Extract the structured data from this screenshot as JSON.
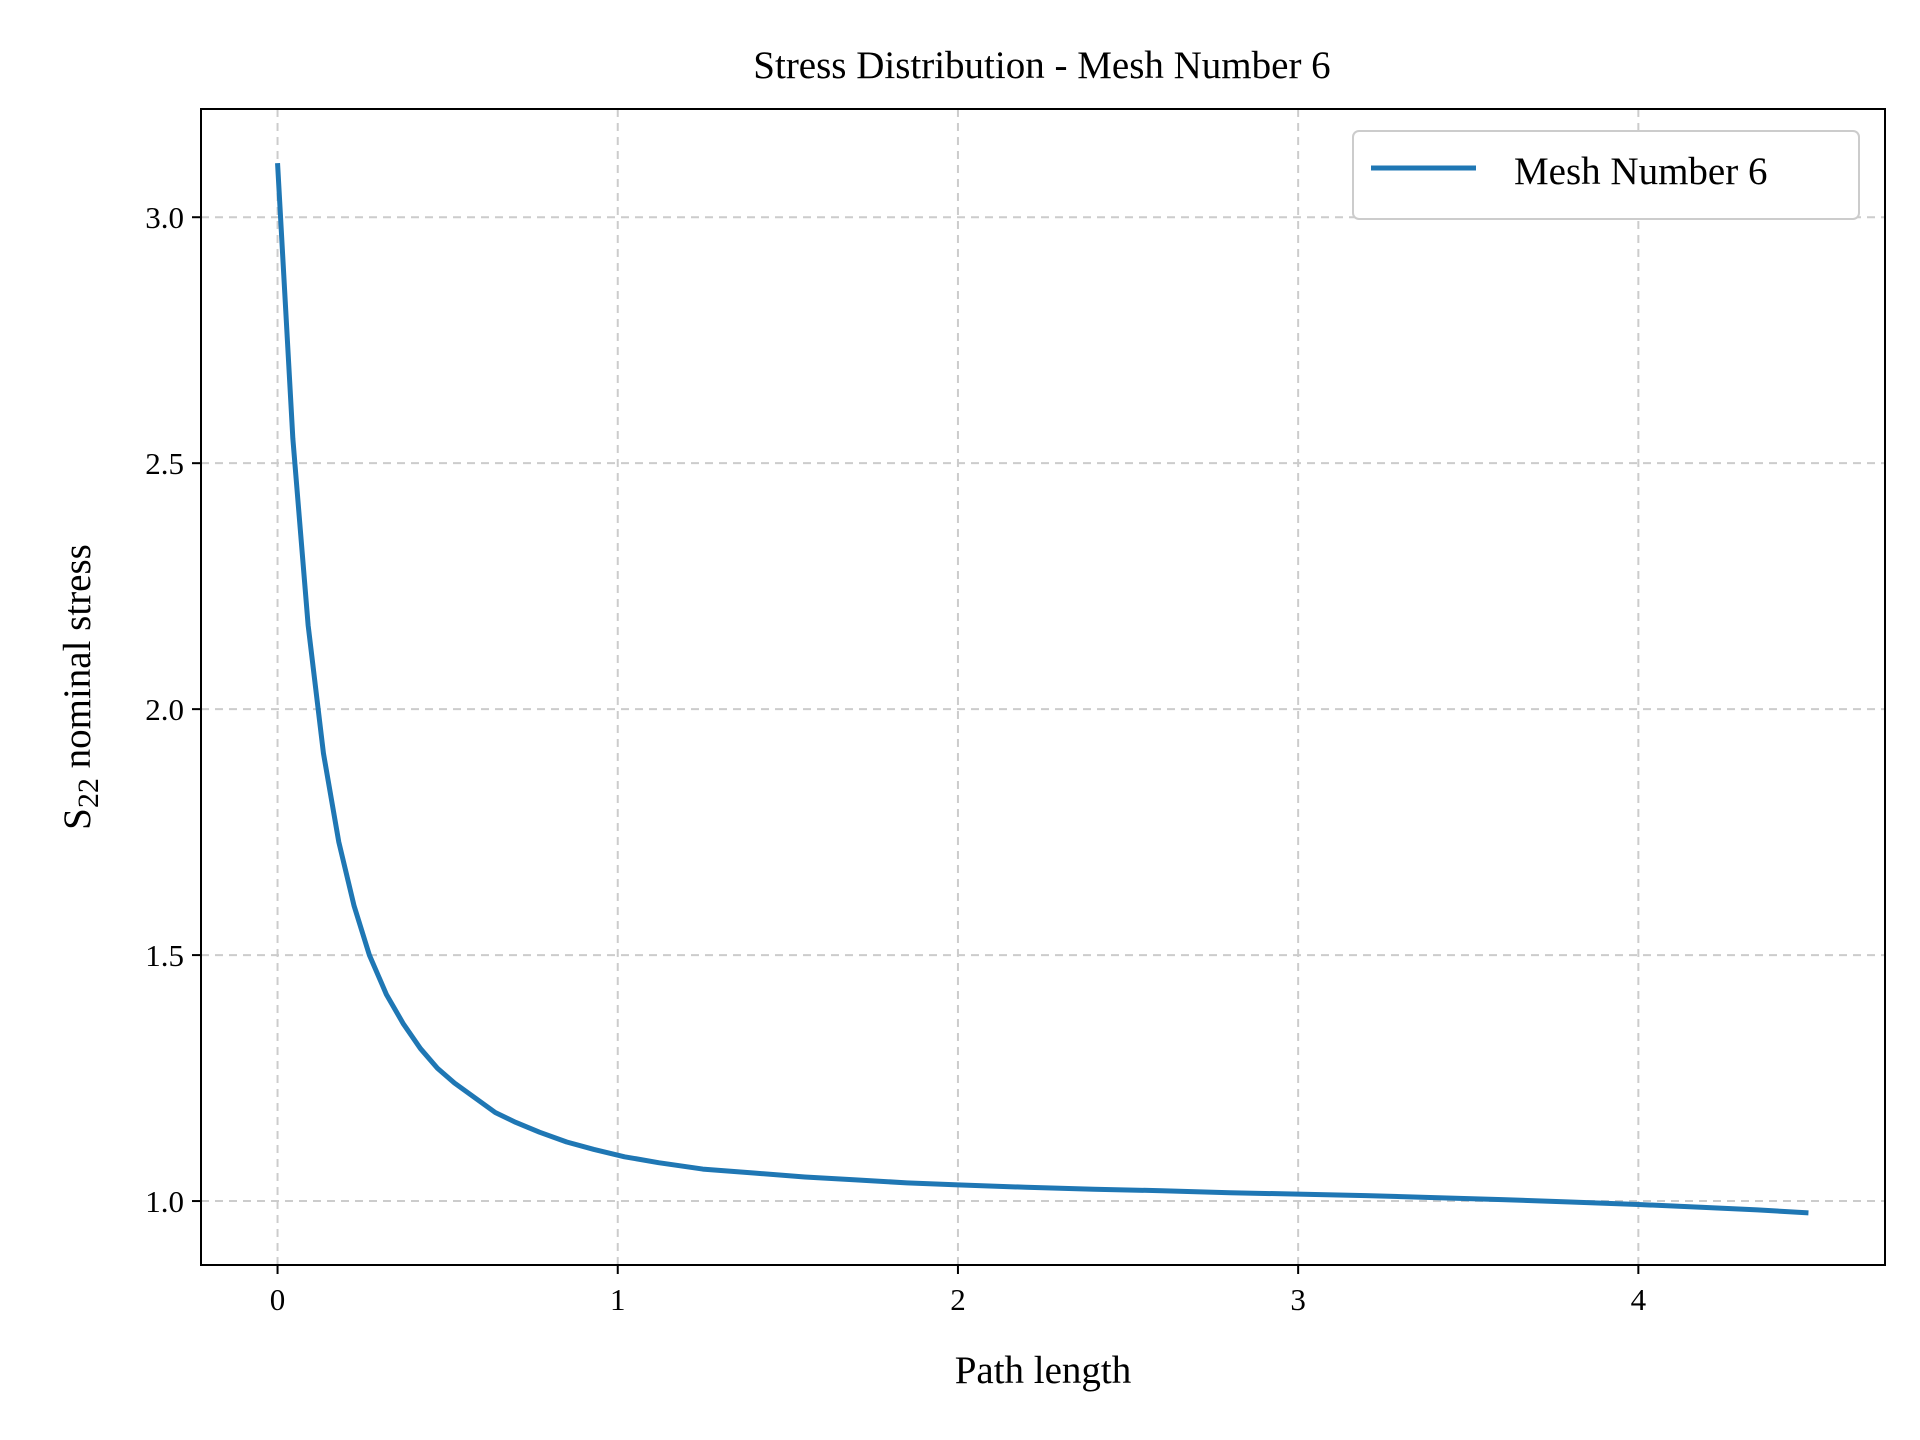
{
  "chart_data": {
    "type": "line",
    "title": "Stress Distribution - Mesh Number 6",
    "xlabel": "Path length",
    "ylabel": "nominal stress",
    "ylabel_symbol": "S",
    "ylabel_subscript": "22",
    "xlim": [
      -0.225,
      4.725
    ],
    "ylim": [
      0.87,
      3.22
    ],
    "xticks": [
      0,
      1,
      2,
      3,
      4
    ],
    "xtick_labels": [
      "0",
      "1",
      "2",
      "3",
      "4"
    ],
    "yticks": [
      1.0,
      1.5,
      2.0,
      2.5,
      3.0
    ],
    "ytick_labels": [
      "1.0",
      "1.5",
      "2.0",
      "2.5",
      "3.0"
    ],
    "grid": true,
    "legend_position": "top-right",
    "series": [
      {
        "name": "Mesh Number 6",
        "color": "#1f77b4",
        "x": [
          0.0,
          0.045,
          0.09,
          0.135,
          0.18,
          0.225,
          0.27,
          0.32,
          0.37,
          0.42,
          0.47,
          0.52,
          0.58,
          0.64,
          0.7,
          0.77,
          0.85,
          0.93,
          1.02,
          1.12,
          1.25,
          1.4,
          1.55,
          1.7,
          1.85,
          2.0,
          2.2,
          2.4,
          2.6,
          2.8,
          3.0,
          3.2,
          3.4,
          3.6,
          3.8,
          4.0,
          4.2,
          4.35,
          4.5
        ],
        "y": [
          3.11,
          2.55,
          2.17,
          1.91,
          1.73,
          1.6,
          1.5,
          1.42,
          1.36,
          1.31,
          1.27,
          1.24,
          1.21,
          1.18,
          1.16,
          1.14,
          1.12,
          1.105,
          1.09,
          1.078,
          1.065,
          1.057,
          1.049,
          1.043,
          1.037,
          1.033,
          1.028,
          1.024,
          1.021,
          1.017,
          1.014,
          1.011,
          1.007,
          1.003,
          0.998,
          0.993,
          0.987,
          0.982,
          0.976
        ]
      }
    ]
  }
}
